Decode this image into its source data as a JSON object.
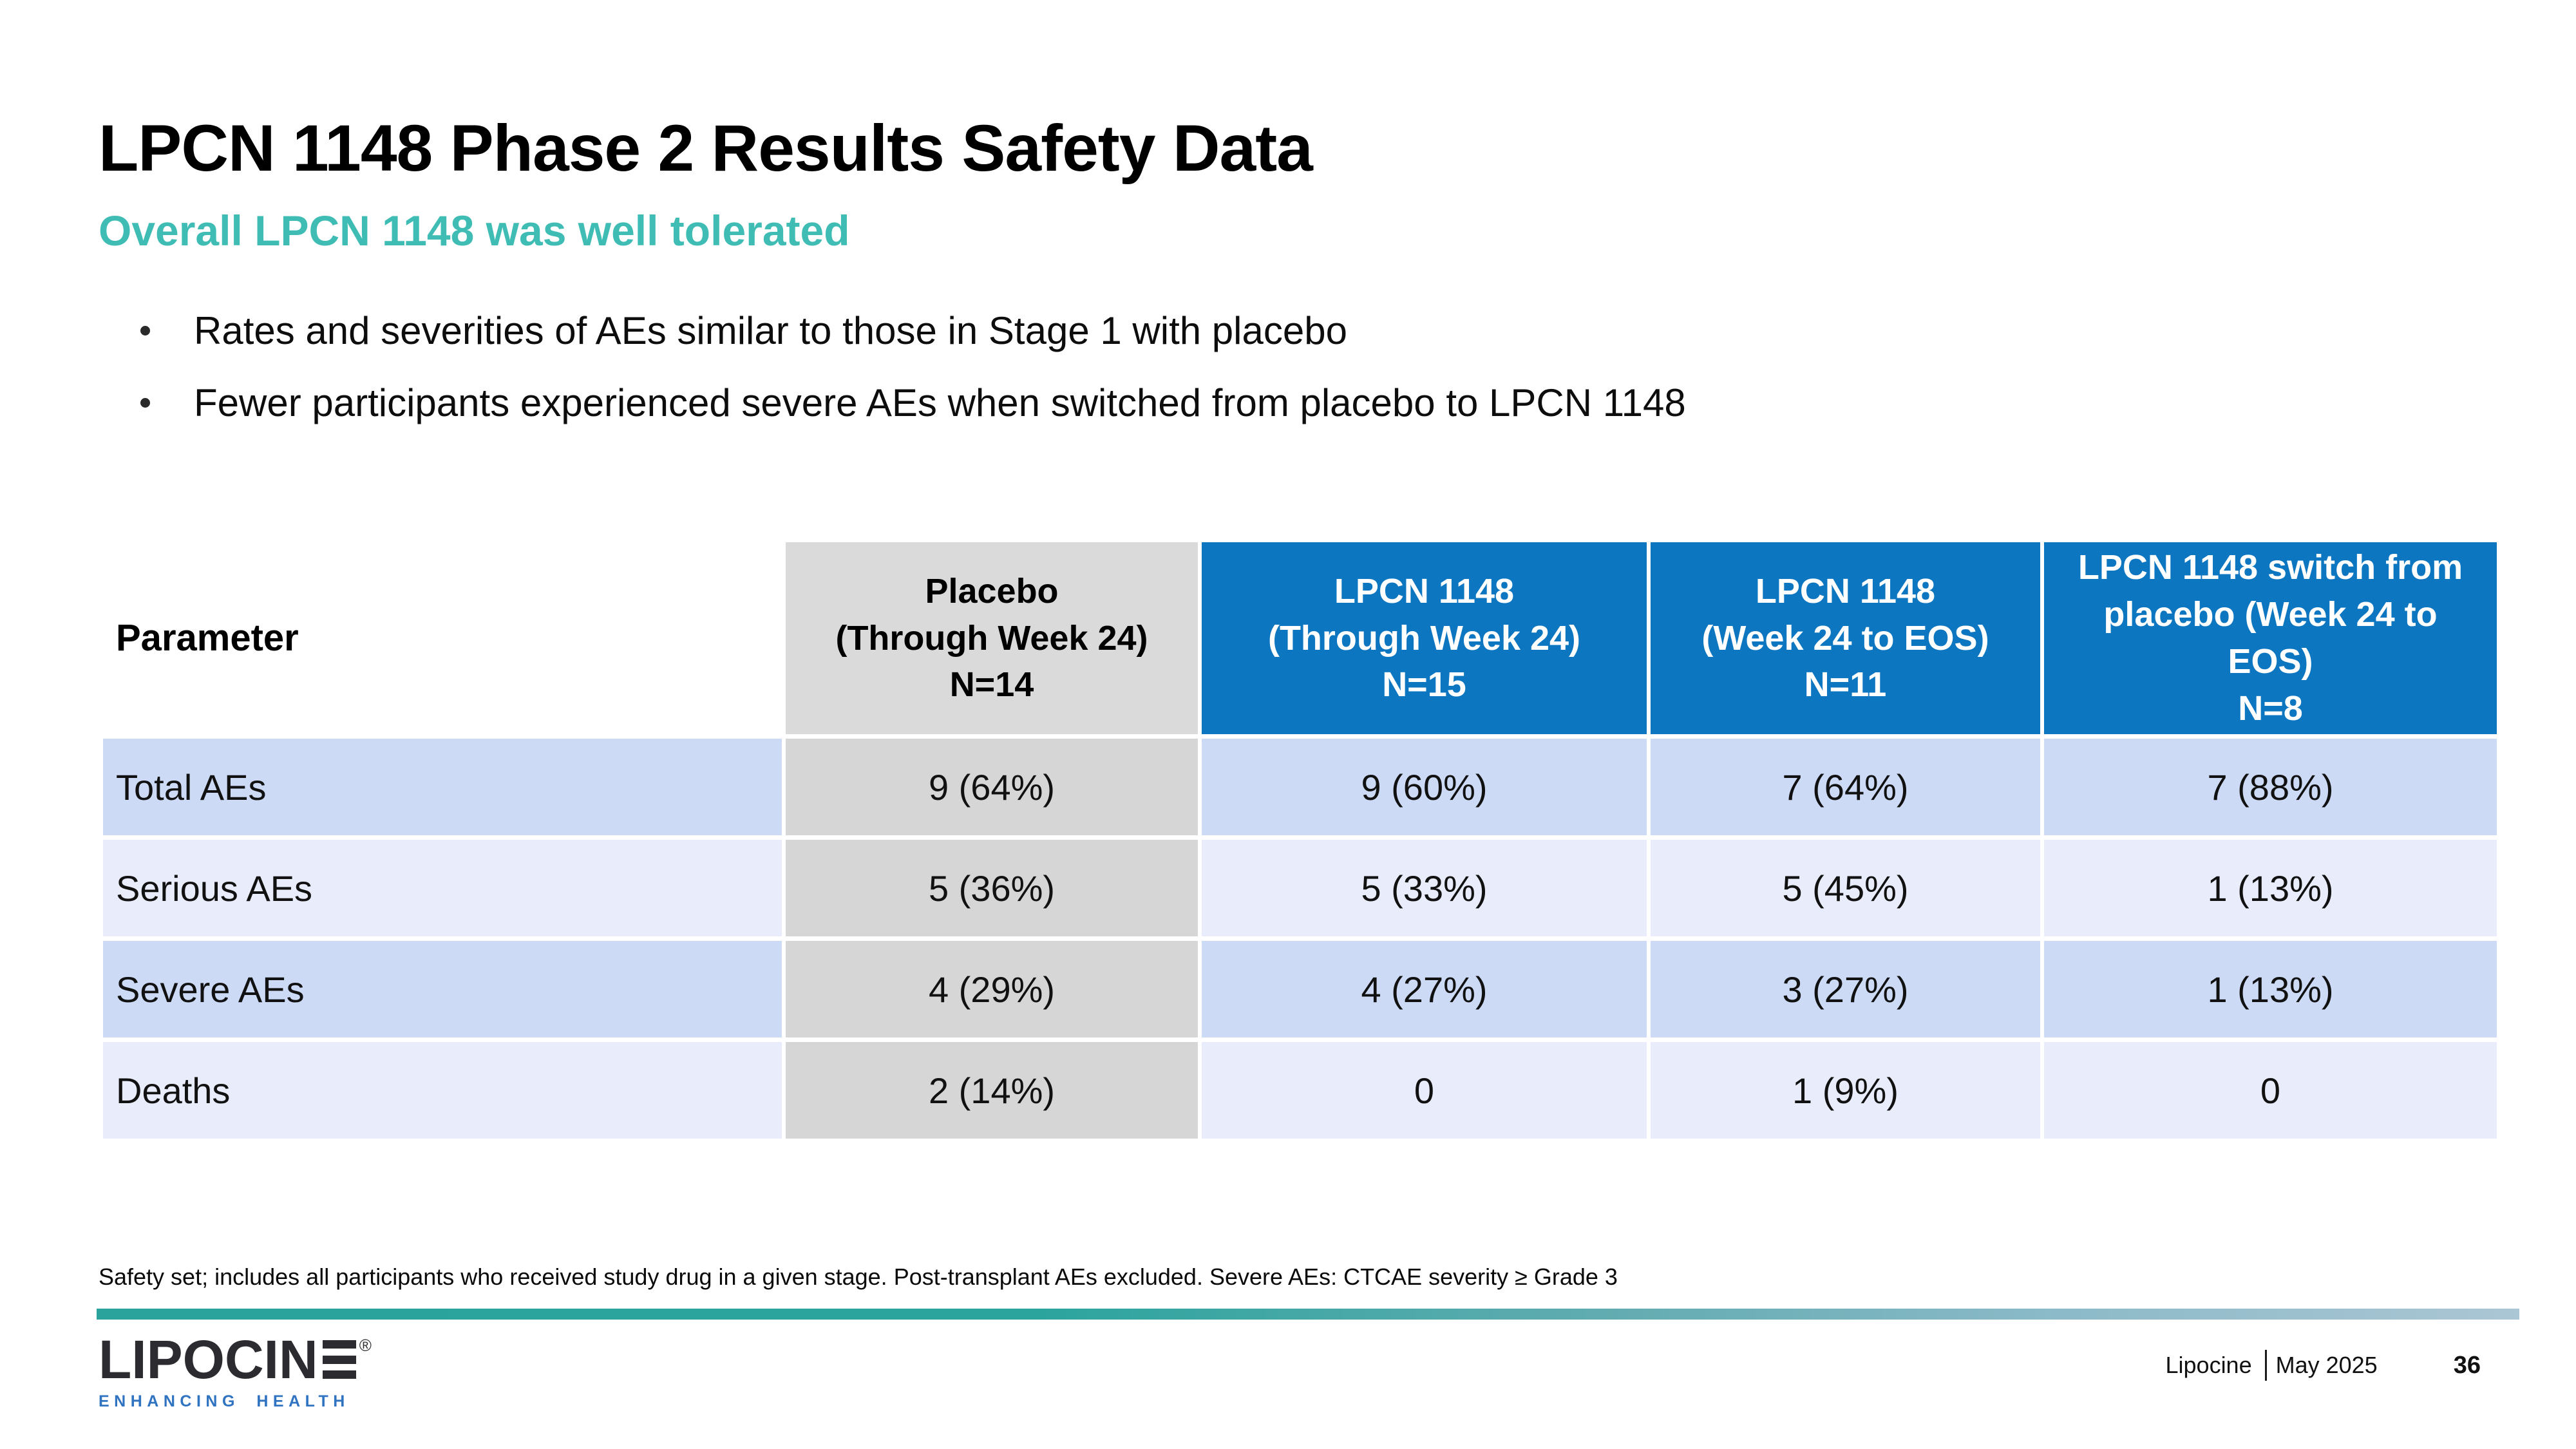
{
  "slide": {
    "title": "LPCN 1148 Phase 2 Results Safety Data",
    "subtitle": "Overall LPCN 1148 was well tolerated",
    "bullets": [
      "Rates and severities of AEs similar to those in Stage 1 with placebo",
      "Fewer participants experienced severe AEs when switched from placebo to LPCN 1148"
    ],
    "footnote": "Safety set; includes all participants who received study drug in a given stage. Post-transplant AEs excluded. Severe AEs: CTCAE severity ≥ Grade 3"
  },
  "table": {
    "columns": [
      "Parameter",
      "Placebo\n(Through Week 24)\nN=14",
      "LPCN 1148\n(Through Week 24)\nN=15",
      "LPCN 1148\n(Week 24 to EOS)\nN=11",
      "LPCN 1148 switch from\nplacebo (Week 24 to\nEOS)\nN=8"
    ],
    "rows": [
      {
        "label": "Total AEs",
        "values": [
          "9 (64%)",
          "9 (60%)",
          "7 (64%)",
          "7 (88%)"
        ]
      },
      {
        "label": "Serious AEs",
        "values": [
          "5 (36%)",
          "5 (33%)",
          "5 (45%)",
          "1 (13%)"
        ]
      },
      {
        "label": "Severe AEs",
        "values": [
          "4 (29%)",
          "4 (27%)",
          "3 (27%)",
          "1 (13%)"
        ]
      },
      {
        "label": "Deaths",
        "values": [
          "2 (14%)",
          "0",
          "1 (9%)",
          "0"
        ]
      }
    ]
  },
  "footer": {
    "logo_text": "LIPOCIN",
    "registered_mark": "®",
    "logo_tagline": "ENHANCING HEALTH",
    "company": "Lipocine",
    "date": "May 2025",
    "page": "36"
  },
  "colors": {
    "accent_teal": "#3fbdb5",
    "header_blue": "#0d76c1",
    "header_gray": "#dadada",
    "cell_gray": "#d6d6d6",
    "row_tint_dark": "#ccdaf6",
    "row_tint_light": "#e9edfb",
    "tagline_blue": "#2f73c1"
  }
}
